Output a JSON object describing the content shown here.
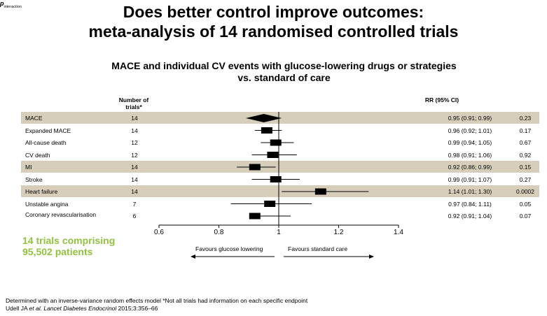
{
  "title_line1": "Does better control improve outcomes:",
  "title_line2": "meta-analysis of 14 randomised controlled trials",
  "subtitle_line1": "MACE and individual CV events with glucose-lowering drugs or strategies",
  "subtitle_line2": "vs. standard of care",
  "headers": {
    "trials_line1": "Number of",
    "trials_line2": "trials*",
    "rr": "RR (95% CI)",
    "p_main": "p",
    "p_sub": "interaction"
  },
  "chart_data": {
    "type": "forest",
    "xlim": [
      0.6,
      1.4
    ],
    "xticks": [
      "0.6",
      "0.8",
      "1",
      "1.2",
      "1.4"
    ],
    "reference_line": 1,
    "favours_left": "Favours glucose lowering",
    "favours_right": "Favours standard care",
    "rows": [
      {
        "label": "MACE",
        "trials": "14",
        "rr": 0.95,
        "lo": 0.91,
        "hi": 0.99,
        "rr_text": "0.95 (0.91; 0.99)",
        "p": "0.23",
        "shaded": true,
        "marker": "diamond"
      },
      {
        "label": "Expanded MACE",
        "trials": "14",
        "rr": 0.96,
        "lo": 0.92,
        "hi": 1.01,
        "rr_text": "0.96 (0.92; 1.01)",
        "p": "0.17",
        "shaded": false,
        "marker": "square"
      },
      {
        "label": "All-cause death",
        "trials": "12",
        "rr": 0.99,
        "lo": 0.94,
        "hi": 1.05,
        "rr_text": "0.99 (0.94; 1.05)",
        "p": "0.67",
        "shaded": false,
        "marker": "square"
      },
      {
        "label": "CV death",
        "trials": "12",
        "rr": 0.98,
        "lo": 0.91,
        "hi": 1.06,
        "rr_text": "0.98 (0.91; 1.06)",
        "p": "0.92",
        "shaded": false,
        "marker": "square"
      },
      {
        "label": "MI",
        "trials": "14",
        "rr": 0.92,
        "lo": 0.86,
        "hi": 0.99,
        "rr_text": "0.92 (0.86; 0.99)",
        "p": "0.15",
        "shaded": true,
        "marker": "square"
      },
      {
        "label": "Stroke",
        "trials": "14",
        "rr": 0.99,
        "lo": 0.91,
        "hi": 1.07,
        "rr_text": "0.99 (0.91; 1.07)",
        "p": "0.27",
        "shaded": false,
        "marker": "square"
      },
      {
        "label": "Heart failure",
        "trials": "14",
        "rr": 1.14,
        "lo": 1.01,
        "hi": 1.3,
        "rr_text": "1.14 (1.01; 1.30)",
        "p": "0.0002",
        "shaded": true,
        "marker": "square"
      },
      {
        "label": "Unstable angina",
        "trials": "7",
        "rr": 0.97,
        "lo": 0.84,
        "hi": 1.11,
        "rr_text": "0.97 (0.84; 1.11)",
        "p": "0.05",
        "shaded": false,
        "marker": "square"
      },
      {
        "label": "Coronary revascularisation",
        "trials": "6",
        "rr": 0.92,
        "lo": 0.91,
        "hi": 1.04,
        "rr_text": "0.92 (0.91; 1.04)",
        "p": "0.07",
        "shaded": false,
        "marker": "square"
      }
    ]
  },
  "callout_line1": "14 trials comprising",
  "callout_line2": "95,502 patients",
  "footnote1": "Determined with an inverse-variance random effects model *Not all trials had information on each specific endpoint",
  "footnote2_pre": "Udell JA ",
  "footnote2_italic": "et al. Lancet Diabetes Endocrinol",
  "footnote2_post": " 2015;3:356–66",
  "colors": {
    "shade": "#d6ceba",
    "callout": "#92c13e"
  }
}
